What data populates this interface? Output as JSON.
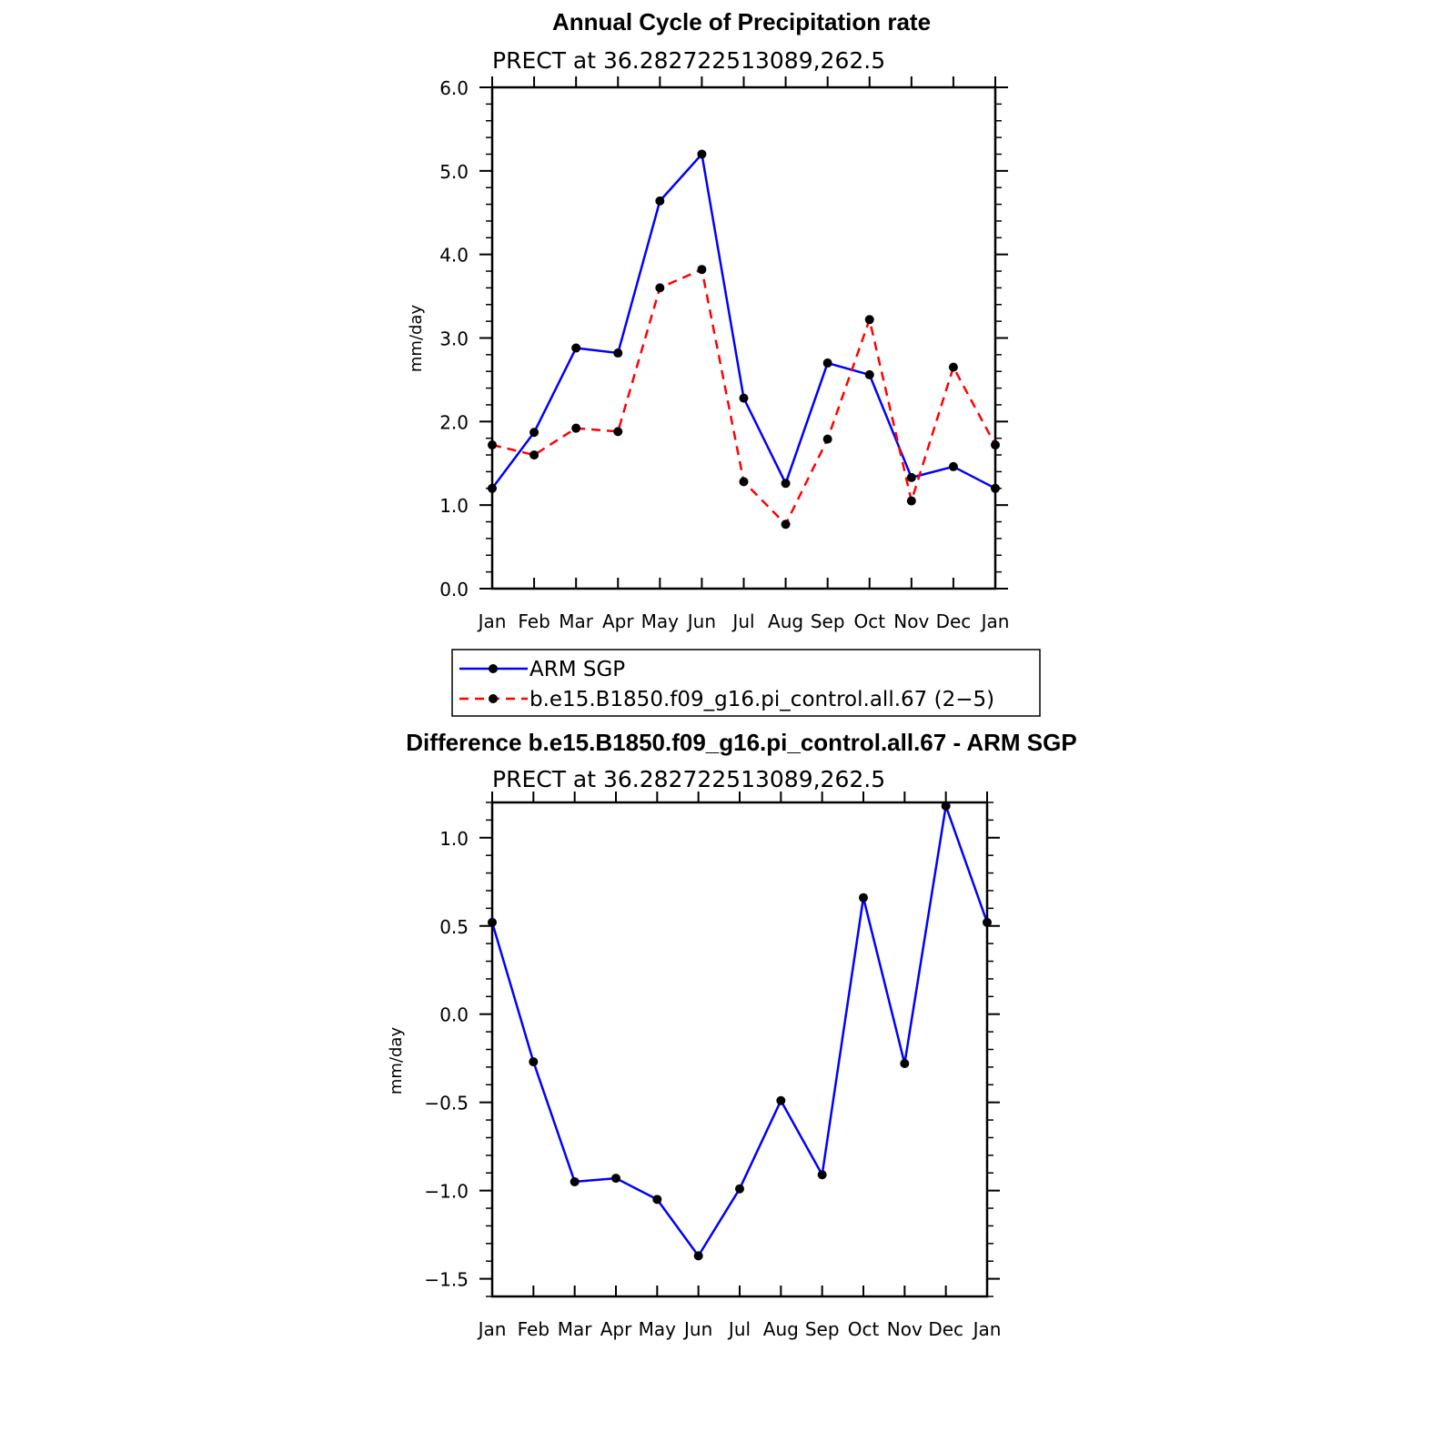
{
  "chart_data": [
    {
      "type": "line",
      "title": "Annual Cycle of Precipitation rate",
      "subtitle": "PRECT at 36.282722513089,262.5",
      "xlabel": "",
      "ylabel": "mm/day",
      "categories": [
        "Jan",
        "Feb",
        "Mar",
        "Apr",
        "May",
        "Jun",
        "Jul",
        "Aug",
        "Sep",
        "Oct",
        "Nov",
        "Dec",
        "Jan"
      ],
      "ylim": [
        0,
        6
      ],
      "yticks": [
        "0.0",
        "1.0",
        "2.0",
        "3.0",
        "4.0",
        "5.0",
        "6.0"
      ],
      "legend_position": "bottom",
      "series": [
        {
          "name": "ARM SGP",
          "color": "#0000ff",
          "style": "solid",
          "values": [
            1.2,
            1.87,
            2.88,
            2.82,
            4.64,
            5.2,
            2.28,
            1.26,
            2.7,
            2.56,
            1.33,
            1.46,
            1.2
          ]
        },
        {
          "name": "b.e15.B1850.f09_g16.pi_control.all.67 (2−5)",
          "color": "#ff0000",
          "style": "dashed",
          "values": [
            1.72,
            1.6,
            1.92,
            1.88,
            3.6,
            3.82,
            1.28,
            0.77,
            1.79,
            3.22,
            1.05,
            2.65,
            1.72
          ]
        }
      ]
    },
    {
      "type": "line",
      "title": "Difference b.e15.B1850.f09_g16.pi_control.all.67 - ARM SGP",
      "subtitle": "PRECT at 36.282722513089,262.5",
      "xlabel": "",
      "ylabel": "mm/day",
      "categories": [
        "Jan",
        "Feb",
        "Mar",
        "Apr",
        "May",
        "Jun",
        "Jul",
        "Aug",
        "Sep",
        "Oct",
        "Nov",
        "Dec",
        "Jan"
      ],
      "ylim": [
        -1.6,
        1.2
      ],
      "yticks": [
        "1.0",
        "0.5",
        "0.0",
        "−0.5",
        "−1.0",
        "−1.5"
      ],
      "ytick_values": [
        1.0,
        0.5,
        0.0,
        -0.5,
        -1.0,
        -1.5
      ],
      "series": [
        {
          "name": "Difference",
          "color": "#0000ff",
          "style": "solid",
          "values": [
            0.52,
            -0.27,
            -0.95,
            -0.93,
            -1.05,
            -1.37,
            -0.99,
            -0.49,
            -0.91,
            0.66,
            -0.28,
            1.18,
            0.52
          ]
        }
      ]
    }
  ]
}
